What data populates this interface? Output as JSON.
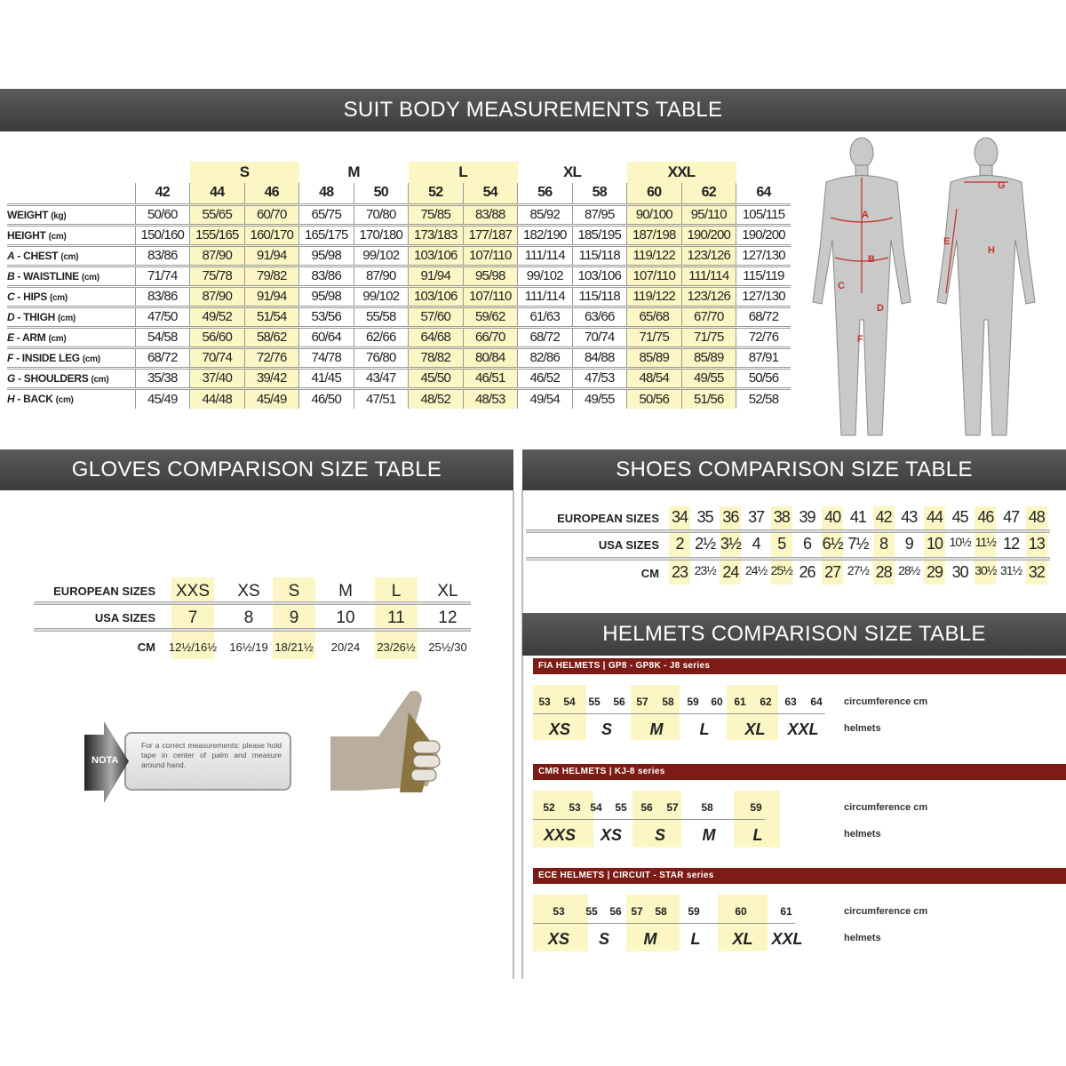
{
  "suit": {
    "title": "SUIT BODY MEASUREMENTS TABLE",
    "groups": [
      {
        "label": "",
        "sizes": [
          "42"
        ],
        "highlight": false
      },
      {
        "label": "S",
        "sizes": [
          "44",
          "46"
        ],
        "highlight": true
      },
      {
        "label": "M",
        "sizes": [
          "48",
          "50"
        ],
        "highlight": false
      },
      {
        "label": "L",
        "sizes": [
          "52",
          "54"
        ],
        "highlight": true
      },
      {
        "label": "XL",
        "sizes": [
          "56",
          "58"
        ],
        "highlight": false
      },
      {
        "label": "XXL",
        "sizes": [
          "60",
          "62"
        ],
        "highlight": true
      },
      {
        "label": "",
        "sizes": [
          "64"
        ],
        "highlight": false
      }
    ],
    "rows": [
      {
        "letter": "",
        "name": "WEIGHT",
        "unit": "(kg)",
        "values": [
          "50/60",
          "55/65",
          "60/70",
          "65/75",
          "70/80",
          "75/85",
          "83/88",
          "85/92",
          "87/95",
          "90/100",
          "95/110",
          "105/115"
        ]
      },
      {
        "letter": "",
        "name": "HEIGHT",
        "unit": "(cm)",
        "values": [
          "150/160",
          "155/165",
          "160/170",
          "165/175",
          "170/180",
          "173/183",
          "177/187",
          "182/190",
          "185/195",
          "187/198",
          "190/200",
          "190/200"
        ]
      },
      {
        "letter": "A",
        "name": " - CHEST",
        "unit": "(cm)",
        "values": [
          "83/86",
          "87/90",
          "91/94",
          "95/98",
          "99/102",
          "103/106",
          "107/110",
          "111/114",
          "115/118",
          "119/122",
          "123/126",
          "127/130"
        ]
      },
      {
        "letter": "B",
        "name": " - WAISTLINE",
        "unit": "(cm)",
        "values": [
          "71/74",
          "75/78",
          "79/82",
          "83/86",
          "87/90",
          "91/94",
          "95/98",
          "99/102",
          "103/106",
          "107/110",
          "111/114",
          "115/119"
        ]
      },
      {
        "letter": "C",
        "name": " - HIPS",
        "unit": "(cm)",
        "values": [
          "83/86",
          "87/90",
          "91/94",
          "95/98",
          "99/102",
          "103/106",
          "107/110",
          "111/114",
          "115/118",
          "119/122",
          "123/126",
          "127/130"
        ]
      },
      {
        "letter": "D",
        "name": " - THIGH",
        "unit": "(cm)",
        "values": [
          "47/50",
          "49/52",
          "51/54",
          "53/56",
          "55/58",
          "57/60",
          "59/62",
          "61/63",
          "63/66",
          "65/68",
          "67/70",
          "68/72"
        ]
      },
      {
        "letter": "E",
        "name": " - ARM",
        "unit": "(cm)",
        "values": [
          "54/58",
          "56/60",
          "58/62",
          "60/64",
          "62/66",
          "64/68",
          "66/70",
          "68/72",
          "70/74",
          "71/75",
          "71/75",
          "72/76"
        ]
      },
      {
        "letter": "F",
        "name": " - INSIDE LEG",
        "unit": "(cm)",
        "values": [
          "68/72",
          "70/74",
          "72/76",
          "74/78",
          "76/80",
          "78/82",
          "80/84",
          "82/86",
          "84/88",
          "85/89",
          "85/89",
          "87/91"
        ]
      },
      {
        "letter": "G",
        "name": " - SHOULDERS",
        "unit": "(cm)",
        "values": [
          "35/38",
          "37/40",
          "39/42",
          "41/45",
          "43/47",
          "45/50",
          "46/51",
          "46/52",
          "47/53",
          "48/54",
          "49/55",
          "50/56"
        ]
      },
      {
        "letter": "H",
        "name": " - BACK",
        "unit": "(cm)",
        "values": [
          "45/49",
          "44/48",
          "45/49",
          "46/50",
          "47/51",
          "48/52",
          "48/53",
          "49/54",
          "49/55",
          "50/56",
          "51/56",
          "52/58"
        ]
      }
    ],
    "figure_labels": [
      "A",
      "B",
      "C",
      "D",
      "E",
      "F",
      "G",
      "H"
    ],
    "figure_label_color": "#c0302a"
  },
  "gloves": {
    "title": "GLOVES COMPARISON SIZE TABLE",
    "row_labels": [
      "EUROPEAN SIZES",
      "USA SIZES",
      "CM"
    ],
    "columns": [
      {
        "eu": "XXS",
        "usa": "7",
        "cm": "12½/16½",
        "highlight": true
      },
      {
        "eu": "XS",
        "usa": "8",
        "cm": "16½/19",
        "highlight": false
      },
      {
        "eu": "S",
        "usa": "9",
        "cm": "18/21½",
        "highlight": true
      },
      {
        "eu": "M",
        "usa": "10",
        "cm": "20/24",
        "highlight": false
      },
      {
        "eu": "L",
        "usa": "11",
        "cm": "23/26½",
        "highlight": true
      },
      {
        "eu": "XL",
        "usa": "12",
        "cm": "25½/30",
        "highlight": false
      }
    ],
    "nota": {
      "badge": "NOTA",
      "text": "For a correct measurements: please hold tape in center of palm and measure around hand."
    }
  },
  "shoes": {
    "title": "SHOES COMPARISON SIZE TABLE",
    "row_labels": [
      "EUROPEAN SIZES",
      "USA SIZES",
      "CM"
    ],
    "eu": [
      "34",
      "35",
      "36",
      "37",
      "38",
      "39",
      "40",
      "41",
      "42",
      "43",
      "44",
      "45",
      "46",
      "47",
      "48"
    ],
    "usa": [
      "2",
      "2½",
      "3½",
      "4",
      "5",
      "6",
      "6½",
      "7½",
      "8",
      "9",
      "10",
      "10½",
      "11½",
      "12",
      "13"
    ],
    "cm": [
      "23",
      "23½",
      "24",
      "24½",
      "25½",
      "26",
      "27",
      "27½",
      "28",
      "28½",
      "29",
      "30",
      "30½",
      "31½",
      "32"
    ]
  },
  "helmets": {
    "title": "HELMETS COMPARISON SIZE TABLE",
    "circ_label": "circumference cm",
    "size_label": "helmets",
    "accent": "#7d1b16",
    "tables": [
      {
        "header": "FIA HELMETS | GP8 - GP8K - J8 series",
        "groups": [
          {
            "size": "XS",
            "circ": [
              "53",
              "54"
            ],
            "highlight": true
          },
          {
            "size": "S",
            "circ": [
              "55",
              "56"
            ],
            "highlight": false
          },
          {
            "size": "M",
            "circ": [
              "57",
              "58"
            ],
            "highlight": true
          },
          {
            "size": "L",
            "circ": [
              "59",
              "60"
            ],
            "highlight": false
          },
          {
            "size": "XL",
            "circ": [
              "61",
              "62"
            ],
            "highlight": true
          },
          {
            "size": "XXL",
            "circ": [
              "63",
              "64"
            ],
            "highlight": false
          }
        ]
      },
      {
        "header": "CMR HELMETS | KJ-8 series",
        "groups": [
          {
            "size": "XXS",
            "circ": [
              "52",
              "53"
            ],
            "highlight": true
          },
          {
            "size": "XS",
            "circ": [
              "54",
              "55"
            ],
            "highlight": false
          },
          {
            "size": "S",
            "circ": [
              "56",
              "57"
            ],
            "highlight": true
          },
          {
            "size": "M",
            "circ": [
              "58"
            ],
            "highlight": false
          },
          {
            "size": "L",
            "circ": [
              "59"
            ],
            "highlight": true
          }
        ]
      },
      {
        "header": "ECE HELMETS | CIRCUIT - STAR series",
        "groups": [
          {
            "size": "XS",
            "circ": [
              "53"
            ],
            "highlight": true
          },
          {
            "size": "S",
            "circ": [
              "55",
              "56"
            ],
            "highlight": false
          },
          {
            "size": "M",
            "circ": [
              "57",
              "58"
            ],
            "highlight": true
          },
          {
            "size": "L",
            "circ": [
              "59"
            ],
            "highlight": false
          },
          {
            "size": "XL",
            "circ": [
              "60"
            ],
            "highlight": true
          },
          {
            "size": "XXL",
            "circ": [
              "61"
            ],
            "highlight": false
          }
        ]
      }
    ]
  }
}
